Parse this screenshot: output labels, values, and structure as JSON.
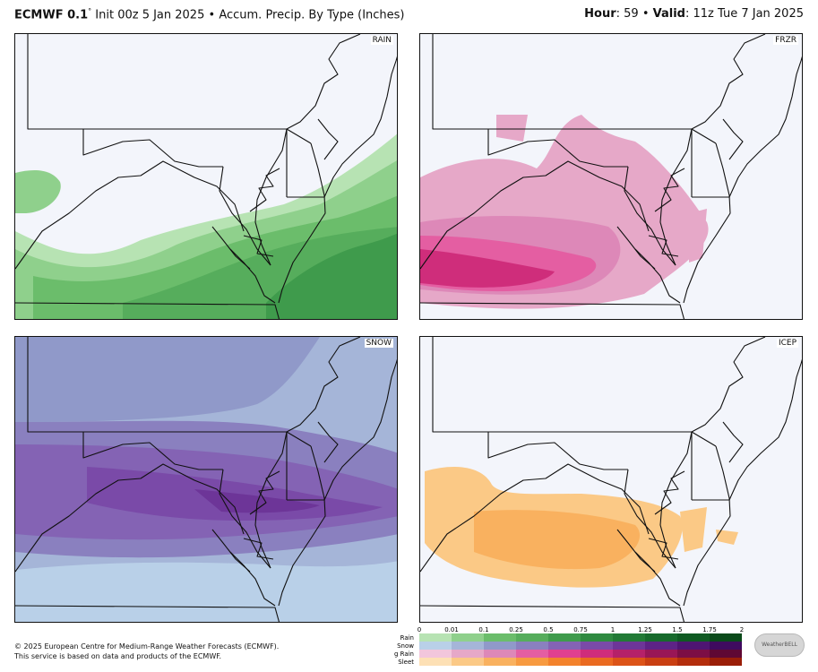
{
  "header": {
    "model": "ECMWF 0.1",
    "degree": "°",
    "init": "Init 00z 5 Jan 2025",
    "bullet": "•",
    "product": "Accum. Precip. By Type (Inches)",
    "hour_label": "Hour",
    "hour_value": ": 59",
    "valid_label": "Valid",
    "valid_value": ": 11z Tue 7 Jan 2025"
  },
  "panels": [
    {
      "id": "rain",
      "label": "RAIN"
    },
    {
      "id": "frzr",
      "label": "FRZR"
    },
    {
      "id": "snow",
      "label": "SNOW"
    },
    {
      "id": "icep",
      "label": "ICEP"
    }
  ],
  "credit": {
    "line1": "© 2025 European Centre for Medium-Range Weather Forecasts (ECMWF).",
    "line2": "This service is based on data and products of the ECMWF."
  },
  "colorbar": {
    "ticks": [
      "0",
      "0.01",
      "0.1",
      "0.25",
      "0.5",
      "0.75",
      "1",
      "1.25",
      "1.5",
      "1.75",
      "2"
    ],
    "rows": [
      {
        "name": "Rain",
        "colors": [
          "#b7e3b3",
          "#8fd08c",
          "#6bbd6b",
          "#56ad5c",
          "#3f9b4c",
          "#2f8a40",
          "#227a36",
          "#176a2c",
          "#0f5a22",
          "#0a4a1a"
        ]
      },
      {
        "name": "Snow",
        "colors": [
          "#b9d0e8",
          "#a5b5d8",
          "#9099c9",
          "#8a80bf",
          "#8463b4",
          "#7a4aa8",
          "#6d3598",
          "#5d2386",
          "#4e1572",
          "#3f0b5f"
        ]
      },
      {
        "name": "Freezing Rain",
        "colors": [
          "#f2c6dc",
          "#e6a8c8",
          "#dd88b8",
          "#e45ea2",
          "#e0408f",
          "#cf2d7b",
          "#b52169",
          "#991656",
          "#7c0e45",
          "#5f0834"
        ]
      },
      {
        "name": "Sleet",
        "colors": [
          "#fde0b5",
          "#fbc986",
          "#f9b15f",
          "#f79a40",
          "#f3822c",
          "#ea6a20",
          "#dc5318",
          "#c93f12",
          "#b32d0c",
          "#9a1e08"
        ]
      }
    ]
  },
  "logo_text": "WeatherBELL"
}
